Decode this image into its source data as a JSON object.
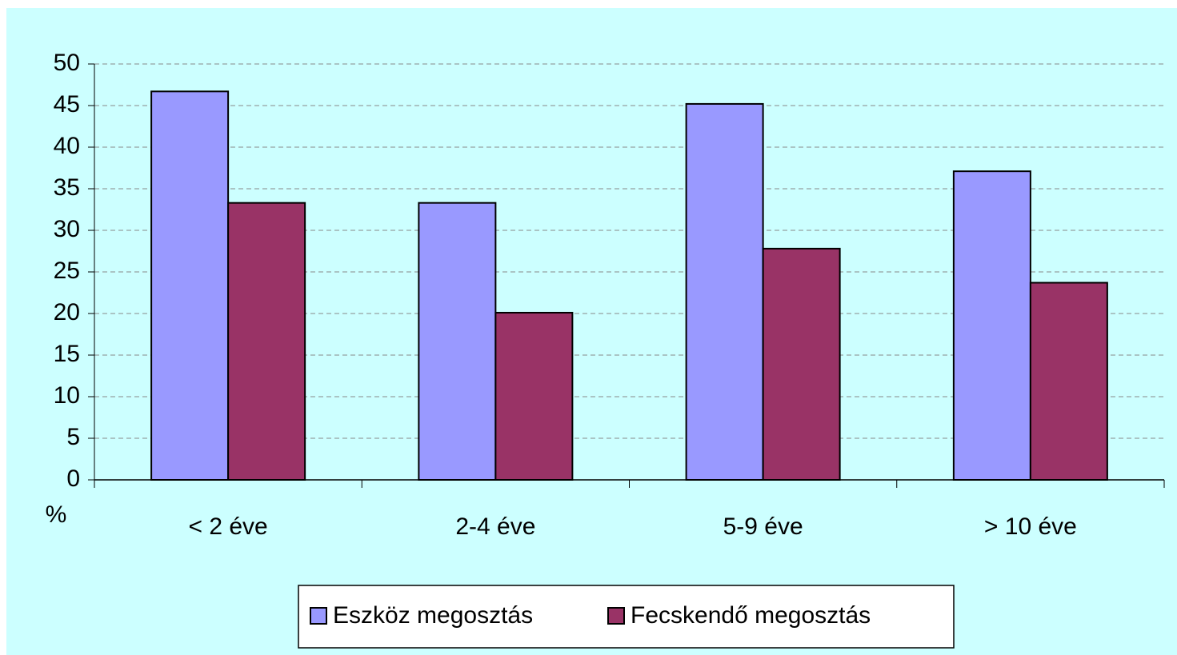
{
  "chart_data": {
    "type": "bar",
    "ylabel": "%",
    "categories": [
      "< 2 éve",
      "2-4 éve",
      "5-9 éve",
      "> 10 éve"
    ],
    "series": [
      {
        "name": "Eszköz megosztás",
        "color": "#9999ff",
        "values": [
          46.7,
          33.3,
          45.2,
          37.1
        ]
      },
      {
        "name": "Fecskendő megosztás",
        "color": "#993366",
        "values": [
          33.3,
          20.1,
          27.8,
          23.7
        ]
      }
    ],
    "ylim": [
      0,
      50
    ],
    "yticks": [
      0,
      5,
      10,
      15,
      20,
      25,
      30,
      35,
      40,
      45,
      50
    ],
    "grid": true,
    "legend": "bottom"
  }
}
